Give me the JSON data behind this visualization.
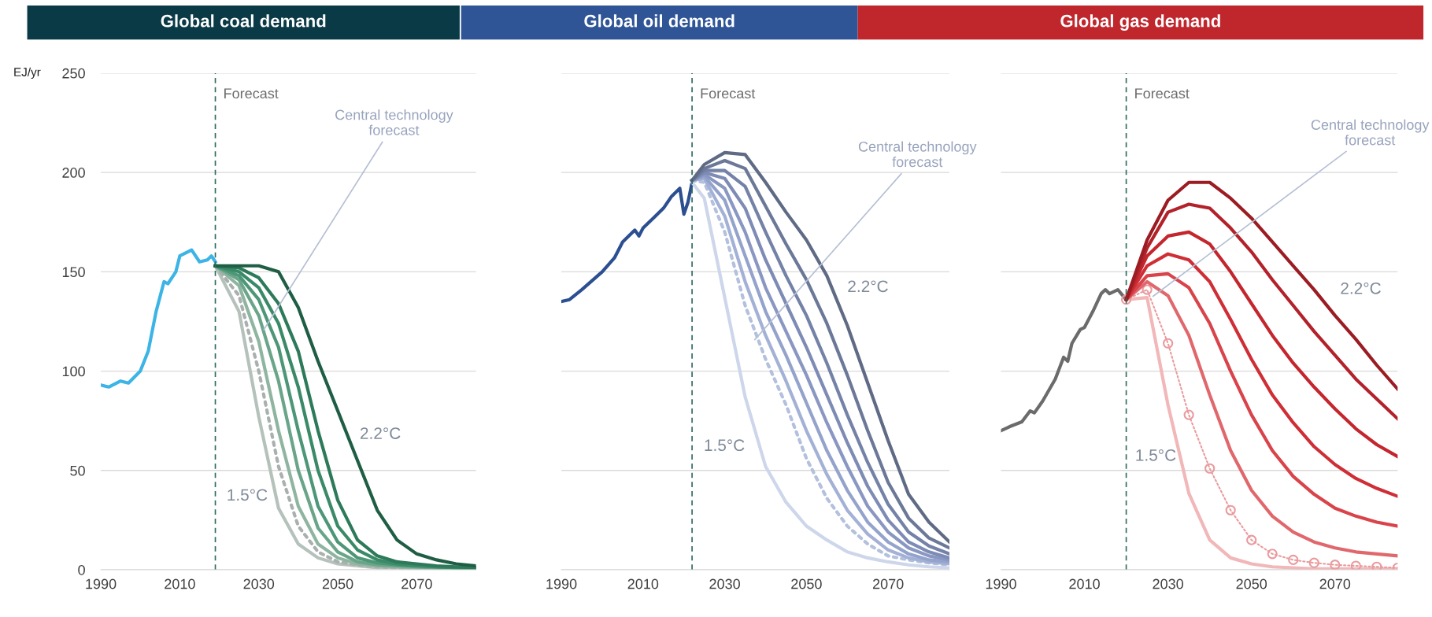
{
  "chart_data": [
    {
      "type": "line",
      "title": "Global coal demand",
      "ylabel": "EJ/yr",
      "xlim": [
        1990,
        2085
      ],
      "xticks": [
        1990,
        2010,
        2030,
        2050,
        2070
      ],
      "ylim": [
        0,
        250
      ],
      "yticks": [
        0,
        50,
        100,
        150,
        200,
        250
      ],
      "grid": "y",
      "ref_lines": [
        {
          "axis": "x",
          "value": 2019,
          "label": "Forecast",
          "line_style": "dashed",
          "color": "#2e6b5e"
        }
      ],
      "annotations": [
        {
          "text": "Central technology\nforecast",
          "x": 2031,
          "y": 120
        },
        "2.2°C",
        "1.5°C"
      ],
      "series": [
        {
          "color": "#3cb4e5",
          "x": [
            1990,
            1992,
            1995,
            1997,
            2000,
            2002,
            2004,
            2006,
            2007,
            2009,
            2010,
            2012,
            2013,
            2015,
            2017,
            2018,
            2019
          ],
          "values": [
            93,
            92,
            95,
            94,
            100,
            110,
            130,
            145,
            144,
            150,
            158,
            160,
            161,
            155,
            156,
            158,
            155
          ]
        },
        {
          "color": "#b5c2bb",
          "x": [
            2019,
            2025,
            2030,
            2035,
            2040,
            2045,
            2050,
            2055,
            2060,
            2065,
            2070,
            2075,
            2080,
            2085
          ],
          "values": [
            153,
            130,
            77,
            31,
            13,
            6,
            3,
            2,
            1,
            1,
            0.5,
            0.5,
            0.5,
            0.5
          ]
        },
        {
          "color": "#a9b0ad",
          "line_style": "dotted",
          "x": [
            2019,
            2025,
            2030,
            2035,
            2040,
            2045,
            2050,
            2055,
            2060,
            2065,
            2070,
            2075,
            2080,
            2085
          ],
          "values": [
            153,
            138,
            100,
            52,
            22,
            9,
            4,
            2.5,
            1.5,
            1,
            1,
            0.5,
            0.5,
            0.5
          ]
        },
        {
          "color": "#8fb5a0",
          "x": [
            2019,
            2025,
            2030,
            2035,
            2040,
            2045,
            2050,
            2055,
            2060,
            2065,
            2070,
            2075,
            2080,
            2085
          ],
          "values": [
            153,
            143,
            115,
            70,
            32,
            13,
            6,
            3,
            2,
            1.5,
            1,
            1,
            0.5,
            0.5
          ]
        },
        {
          "color": "#6aa58a",
          "x": [
            2019,
            2025,
            2030,
            2035,
            2040,
            2045,
            2050,
            2055,
            2060,
            2065,
            2070,
            2075,
            2080,
            2085
          ],
          "values": [
            153,
            146,
            128,
            95,
            50,
            21,
            9,
            4,
            2.5,
            2,
            1.5,
            1,
            1,
            0.5
          ]
        },
        {
          "color": "#4d9677",
          "x": [
            2019,
            2025,
            2030,
            2035,
            2040,
            2045,
            2050,
            2055,
            2060,
            2065,
            2070,
            2075,
            2080,
            2085
          ],
          "values": [
            153,
            148,
            136,
            112,
            70,
            32,
            14,
            6,
            3.5,
            2.5,
            2,
            1.5,
            1,
            1
          ]
        },
        {
          "color": "#3a8a68",
          "x": [
            2019,
            2025,
            2030,
            2035,
            2040,
            2045,
            2050,
            2055,
            2060,
            2065,
            2070,
            2075,
            2080,
            2085
          ],
          "values": [
            153,
            150,
            142,
            124,
            92,
            50,
            22,
            10,
            5,
            3,
            2,
            1.5,
            1,
            1
          ]
        },
        {
          "color": "#2d7a5a",
          "x": [
            2019,
            2025,
            2030,
            2035,
            2040,
            2045,
            2050,
            2055,
            2060,
            2065,
            2070,
            2075,
            2080,
            2085
          ],
          "values": [
            153,
            152,
            147,
            134,
            110,
            70,
            35,
            15,
            7,
            4,
            3,
            2,
            1.5,
            1
          ]
        },
        {
          "color": "#1f5e45",
          "x": [
            2019,
            2025,
            2030,
            2035,
            2040,
            2045,
            2050,
            2055,
            2060,
            2065,
            2070,
            2075,
            2080,
            2085
          ],
          "values": [
            153,
            153,
            153,
            150,
            132,
            105,
            80,
            55,
            30,
            15,
            8,
            5,
            3,
            2
          ]
        }
      ]
    },
    {
      "type": "line",
      "title": "Global oil demand",
      "xlim": [
        1990,
        2085
      ],
      "xticks": [
        1990,
        2010,
        2030,
        2050,
        2070
      ],
      "ylim": [
        0,
        250
      ],
      "yticks": [
        0,
        50,
        100,
        150,
        200,
        250
      ],
      "grid": "y",
      "tick_labels": "x",
      "ref_lines": [
        {
          "axis": "x",
          "value": 2022,
          "label": "Forecast",
          "line_style": "dashed",
          "color": "#2e6b5e"
        }
      ],
      "annotations": [
        {
          "text": "Central technology\nforecast",
          "x": 2037,
          "y": 115
        },
        "2.2°C",
        "1.5°C"
      ],
      "series": [
        {
          "color": "#2c4f91",
          "x": [
            1990,
            1992,
            1995,
            2000,
            2003,
            2005,
            2008,
            2009,
            2010,
            2013,
            2015,
            2017,
            2019,
            2020,
            2021,
            2022
          ],
          "values": [
            135,
            136,
            141,
            150,
            157,
            165,
            171,
            168,
            172,
            178,
            182,
            188,
            192,
            179,
            185,
            195
          ]
        },
        {
          "color": "#cdd6ea",
          "x": [
            2022,
            2025,
            2030,
            2035,
            2040,
            2045,
            2050,
            2055,
            2060,
            2065,
            2070,
            2075,
            2080,
            2085
          ],
          "values": [
            195,
            187,
            137,
            87,
            52,
            34,
            22,
            15,
            9,
            6,
            4,
            2.5,
            1.5,
            1
          ]
        },
        {
          "color": "#b3c0de",
          "line_style": "dotted",
          "x": [
            2022,
            2025,
            2030,
            2035,
            2040,
            2045,
            2050,
            2055,
            2060,
            2065,
            2070,
            2075,
            2080,
            2085
          ],
          "values": [
            196,
            195,
            170,
            133,
            106,
            83,
            56,
            36,
            22,
            13,
            7,
            5,
            3.5,
            2.5
          ]
        },
        {
          "color": "#a3b1d6",
          "x": [
            2022,
            2025,
            2030,
            2035,
            2040,
            2045,
            2050,
            2055,
            2060,
            2065,
            2070,
            2075,
            2080,
            2085
          ],
          "values": [
            196,
            197,
            178,
            145,
            118,
            95,
            70,
            48,
            30,
            18,
            10,
            6,
            4,
            3
          ]
        },
        {
          "color": "#94a3cc",
          "x": [
            2022,
            2025,
            2030,
            2035,
            2040,
            2045,
            2050,
            2055,
            2060,
            2065,
            2070,
            2075,
            2080,
            2085
          ],
          "values": [
            196,
            198,
            186,
            158,
            130,
            108,
            84,
            60,
            40,
            24,
            14,
            8,
            5,
            4
          ]
        },
        {
          "color": "#8997c2",
          "x": [
            2022,
            2025,
            2030,
            2035,
            2040,
            2045,
            2050,
            2055,
            2060,
            2065,
            2070,
            2075,
            2080,
            2085
          ],
          "values": [
            196,
            199,
            192,
            170,
            142,
            120,
            98,
            74,
            52,
            32,
            19,
            11,
            7,
            5
          ]
        },
        {
          "color": "#7d8bb5",
          "x": [
            2022,
            2025,
            2030,
            2035,
            2040,
            2045,
            2050,
            2055,
            2060,
            2065,
            2070,
            2075,
            2080,
            2085
          ],
          "values": [
            196,
            200,
            197,
            182,
            156,
            134,
            112,
            88,
            64,
            42,
            25,
            14,
            9,
            6
          ]
        },
        {
          "color": "#7482a8",
          "x": [
            2022,
            2025,
            2030,
            2035,
            2040,
            2045,
            2050,
            2055,
            2060,
            2065,
            2070,
            2075,
            2080,
            2085
          ],
          "values": [
            196,
            201,
            201,
            193,
            170,
            148,
            128,
            104,
            78,
            54,
            33,
            19,
            12,
            8
          ]
        },
        {
          "color": "#6b7898",
          "x": [
            2022,
            2025,
            2030,
            2035,
            2040,
            2045,
            2050,
            2055,
            2060,
            2065,
            2070,
            2075,
            2080,
            2085
          ],
          "values": [
            196,
            202,
            206,
            202,
            183,
            164,
            146,
            124,
            98,
            70,
            44,
            26,
            16,
            11
          ]
        },
        {
          "color": "#5f6b85",
          "x": [
            2022,
            2025,
            2030,
            2035,
            2040,
            2045,
            2050,
            2055,
            2060,
            2065,
            2070,
            2075,
            2080,
            2085
          ],
          "values": [
            196,
            204,
            210,
            209,
            195,
            180,
            166,
            148,
            123,
            94,
            65,
            38,
            24,
            14
          ]
        }
      ]
    },
    {
      "type": "line",
      "title": "Global gas demand",
      "xlim": [
        1990,
        2085
      ],
      "xticks": [
        1990,
        2010,
        2030,
        2050,
        2070
      ],
      "ylim": [
        0,
        250
      ],
      "yticks": [
        0,
        50,
        100,
        150,
        200,
        250
      ],
      "grid": "y",
      "tick_labels": "x",
      "ref_lines": [
        {
          "axis": "x",
          "value": 2020,
          "label": "Forecast",
          "line_style": "dashed",
          "color": "#2e6b5e"
        }
      ],
      "annotations": [
        {
          "text": "Central technology\nforecast",
          "x": 2026,
          "y": 137
        },
        "2.2°C",
        "1.5°C"
      ],
      "series": [
        {
          "color": "#6b6b6b",
          "x": [
            1990,
            1992,
            1995,
            1997,
            1998,
            2000,
            2003,
            2005,
            2006,
            2007,
            2009,
            2010,
            2012,
            2014,
            2015,
            2016,
            2018,
            2020
          ],
          "values": [
            70,
            72,
            74.5,
            80,
            79,
            85,
            96,
            107,
            105,
            114,
            121,
            122,
            130,
            139,
            141,
            139,
            141,
            136
          ]
        },
        {
          "color": "#f1b7b9",
          "x": [
            2020,
            2025,
            2030,
            2035,
            2040,
            2045,
            2050,
            2055,
            2060,
            2065,
            2070,
            2075,
            2080,
            2085
          ],
          "values": [
            136,
            137,
            83,
            38.5,
            15,
            6,
            3,
            1.5,
            1,
            0.5,
            0.5,
            0.5,
            0.5,
            0.5
          ]
        },
        {
          "color": "#ea9a9d",
          "marker": "circle",
          "line_style": "dotted",
          "x": [
            2020,
            2025,
            2030,
            2035,
            2040,
            2045,
            2050,
            2055,
            2060,
            2065,
            2070,
            2075,
            2080,
            2085
          ],
          "values": [
            136,
            141,
            114,
            78,
            51,
            30,
            15,
            8,
            5,
            3.5,
            2.5,
            2,
            1.5,
            1
          ]
        },
        {
          "color": "#e0686d",
          "x": [
            2020,
            2025,
            2030,
            2035,
            2040,
            2045,
            2050,
            2055,
            2060,
            2065,
            2070,
            2075,
            2080,
            2085
          ],
          "values": [
            136,
            145,
            138,
            118,
            88,
            60,
            40,
            27,
            19,
            14,
            11,
            9,
            8,
            7
          ]
        },
        {
          "color": "#d9434a",
          "x": [
            2020,
            2025,
            2030,
            2035,
            2040,
            2045,
            2050,
            2055,
            2060,
            2065,
            2070,
            2075,
            2080,
            2085
          ],
          "values": [
            136,
            148,
            149,
            142,
            124,
            100,
            78,
            60,
            47,
            38,
            31,
            27,
            24,
            22
          ]
        },
        {
          "color": "#d02e36",
          "x": [
            2020,
            2025,
            2030,
            2035,
            2040,
            2045,
            2050,
            2055,
            2060,
            2065,
            2070,
            2075,
            2080,
            2085
          ],
          "values": [
            136,
            153,
            159,
            156,
            145,
            126,
            106,
            88,
            74,
            62,
            53,
            46,
            41,
            37
          ]
        },
        {
          "color": "#c4262e",
          "x": [
            2020,
            2025,
            2030,
            2035,
            2040,
            2045,
            2050,
            2055,
            2060,
            2065,
            2070,
            2075,
            2080,
            2085
          ],
          "values": [
            136,
            158,
            168,
            170,
            164,
            150,
            134,
            118,
            104,
            92,
            81,
            71,
            63,
            57
          ]
        },
        {
          "color": "#b3222a",
          "x": [
            2020,
            2025,
            2030,
            2035,
            2040,
            2045,
            2050,
            2055,
            2060,
            2065,
            2070,
            2075,
            2080,
            2085
          ],
          "values": [
            136,
            162,
            180,
            184,
            182,
            172,
            160,
            146,
            133,
            120,
            108,
            96,
            86,
            76
          ]
        },
        {
          "color": "#9b1c22",
          "x": [
            2020,
            2025,
            2030,
            2035,
            2040,
            2045,
            2050,
            2055,
            2060,
            2065,
            2070,
            2075,
            2080,
            2085
          ],
          "values": [
            136,
            166,
            186,
            195,
            195,
            187,
            177,
            165,
            153,
            141,
            128,
            116,
            103,
            91
          ]
        }
      ]
    }
  ]
}
